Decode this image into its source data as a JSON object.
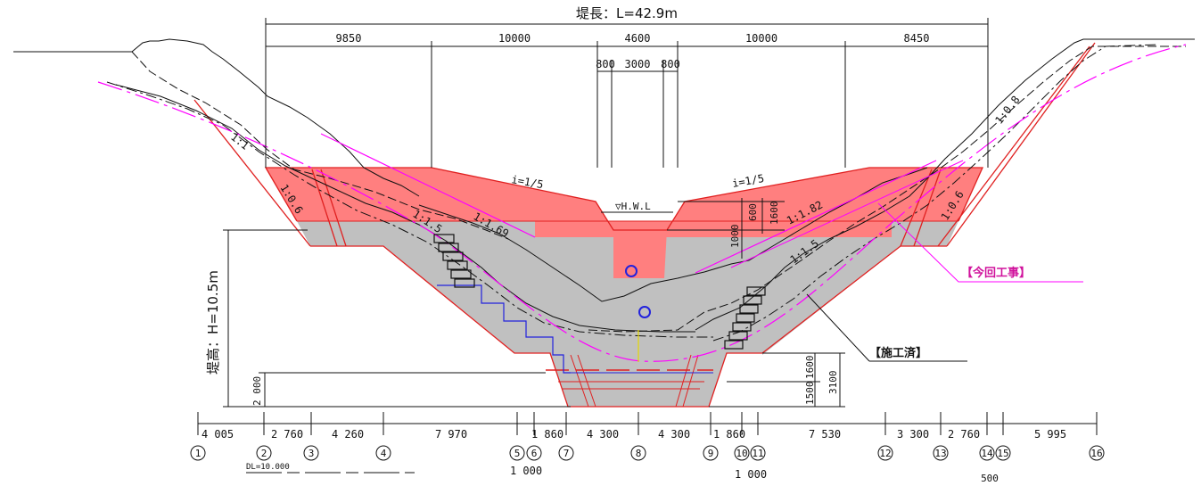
{
  "title": "堤長：L=42.9m",
  "height_label": "堤高：H=10.5m",
  "top_dims": [
    "9850",
    "10000",
    "4600",
    "10000",
    "8450"
  ],
  "notch_dims": [
    "800",
    "3000",
    "800"
  ],
  "slope_labels": {
    "left_upper": "1:1",
    "left_face": "1:0.6",
    "left_cut": "1:1.5",
    "left_cut2": "1:1.69",
    "top_left": "i=1/5",
    "top_right": "i=1/5",
    "right_cut": "1:1.82",
    "right_cut2": "1:1.5",
    "right_face": "1:0.6",
    "right_upper": "1:0.8"
  },
  "hwl_label": "▽H.W.L",
  "notch_small_dims": [
    "600",
    "1600",
    "1000"
  ],
  "right_heights": [
    "1600",
    "3100",
    "1500"
  ],
  "left_small": "2 000",
  "bottom_dims": [
    "4 005",
    "2 760",
    "4 260",
    "7 970",
    "1 860",
    "4 300",
    "4 300",
    "1 860",
    "7 530",
    "3 300",
    "2 760",
    "5 995"
  ],
  "below_dims": [
    "1 000",
    "1 000",
    "500"
  ],
  "stations": [
    "1",
    "2",
    "3",
    "4",
    "5",
    "6",
    "7",
    "8",
    "9",
    "10",
    "11",
    "12",
    "13",
    "14",
    "15",
    "16"
  ],
  "dl_label": "DL=10.000",
  "annotations": {
    "this_work": "【今回工事】",
    "completed": "【施工済】"
  },
  "colors": {
    "new_concrete": "#ff7f7f",
    "existing": "#c0c0c0",
    "red_line": "#e02020",
    "magenta": "#ff00ff",
    "blue": "#2222dd"
  }
}
